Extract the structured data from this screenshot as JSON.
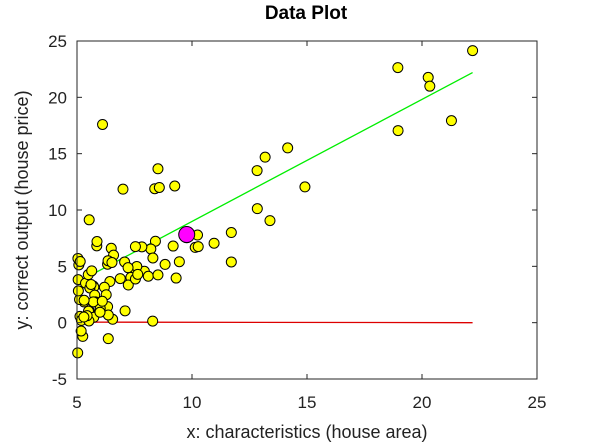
{
  "chart_data": {
    "type": "scatter",
    "title": "Data Plot",
    "xlabel": "x: characteristics (house area)",
    "ylabel": "y: correct output (house price)",
    "xlim": [
      5,
      25
    ],
    "ylim": [
      -5,
      25
    ],
    "xticks": [
      5,
      10,
      15,
      20,
      25
    ],
    "yticks": [
      -5,
      0,
      5,
      10,
      15,
      20,
      25
    ],
    "grid": false,
    "legend": "none",
    "colors": {
      "points_fill": "#ffff00",
      "points_edge": "#000000",
      "highlight_fill": "#ff00ff",
      "fit_line": "#00ee00",
      "zero_line": "#dd0000",
      "axes": "#262626"
    },
    "series": [
      {
        "type": "scatter",
        "x": [
          6.11,
          5.53,
          8.52,
          7.0,
          5.86,
          8.38,
          7.48,
          8.58,
          6.49,
          5.05,
          5.71,
          14.16,
          5.73,
          8.41,
          5.64,
          5.37,
          6.37,
          5.13,
          6.43,
          7.07,
          6.19,
          20.27,
          5.49,
          6.33,
          5.56,
          18.95,
          12.83,
          10.96,
          13.18,
          22.2,
          5.25,
          6.59,
          9.25,
          5.89,
          8.21,
          7.93,
          8.1,
          5.61,
          12.84,
          6.35,
          5.41,
          6.88,
          11.71,
          5.77,
          7.82,
          7.09,
          5.08,
          5.8,
          11.71,
          5.54,
          7.54,
          5.31,
          7.42,
          7.6,
          6.33,
          6.36,
          6.27,
          5.64,
          9.31,
          9.45,
          8.83,
          5.18,
          21.28,
          14.91,
          18.96,
          7.22,
          8.3,
          10.24,
          5.5,
          20.34,
          10.14,
          7.34,
          6.01,
          7.23,
          5.03,
          6.55,
          7.54,
          5.04,
          10.27,
          5.11,
          5.73,
          5.19,
          6.36,
          9.77,
          6.52,
          8.52,
          9.18,
          6.0,
          5.52,
          5.06,
          5.71,
          7.64,
          5.87,
          5.31,
          8.29,
          13.39,
          5.44,
          5.14,
          5.3,
          6.1
        ],
        "y": [
          17.59,
          9.13,
          13.66,
          11.85,
          6.82,
          11.89,
          4.35,
          12.0,
          6.6,
          3.82,
          3.25,
          15.51,
          3.16,
          7.23,
          0.72,
          3.51,
          5.3,
          0.56,
          3.65,
          5.39,
          3.14,
          21.77,
          4.26,
          5.19,
          3.08,
          22.64,
          13.5,
          7.05,
          14.69,
          24.15,
          -1.22,
          5.99,
          12.13,
          1.85,
          6.54,
          4.56,
          4.12,
          3.39,
          10.12,
          5.5,
          0.56,
          3.91,
          5.39,
          2.44,
          6.73,
          1.05,
          5.13,
          1.84,
          8.0,
          1.02,
          6.75,
          1.84,
          4.29,
          4.99,
          1.42,
          -1.42,
          2.48,
          4.6,
          3.96,
          5.41,
          5.17,
          -0.74,
          17.93,
          12.05,
          17.05,
          4.88,
          5.74,
          7.78,
          1.02,
          20.99,
          6.68,
          4.02,
          1.28,
          3.34,
          -2.68,
          0.3,
          3.88,
          5.7,
          6.75,
          2.06,
          0.48,
          0.2,
          0.68,
          7.54,
          5.34,
          4.24,
          6.8,
          0.93,
          0.15,
          2.82,
          1.85,
          4.29,
          7.2,
          1.99,
          0.14,
          9.06,
          0.62,
          5.43,
          0.5,
          1.9
        ]
      },
      {
        "type": "highlight",
        "x": [
          9.77
        ],
        "y": [
          7.82
        ]
      },
      {
        "type": "line",
        "x": [
          5.03,
          22.2
        ],
        "y": [
          3.6,
          22.2
        ]
      },
      {
        "type": "line",
        "x": [
          5.03,
          22.2
        ],
        "y": [
          0.05,
          0.0
        ]
      }
    ]
  }
}
